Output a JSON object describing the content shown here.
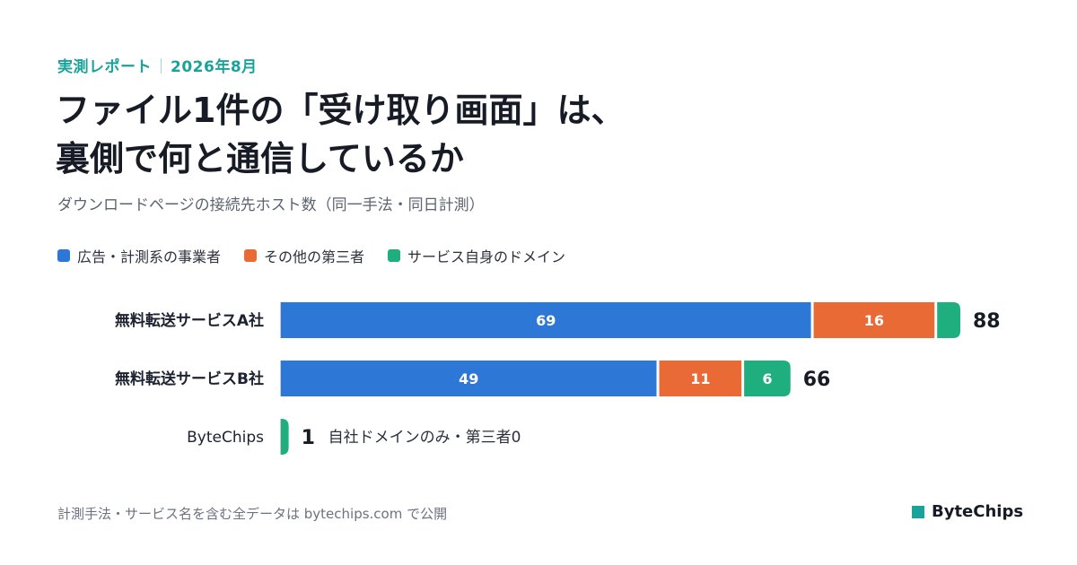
{
  "header": {
    "eyebrow_left": "実測レポート",
    "eyebrow_right": "2026年8月",
    "title_line1": "ファイル1件の「受け取り画面」は、",
    "title_line2": "裏側で何と通信しているか",
    "subtitle": "ダウンロードページの接続先ホスト数（同一手法・同日計測）"
  },
  "legend": [
    {
      "label": "広告・計測系の事業者",
      "color": "#2d78d6"
    },
    {
      "label": "その他の第三者",
      "color": "#ea6a35"
    },
    {
      "label": "サービス自身のドメイン",
      "color": "#1fae7e"
    }
  ],
  "chart_data": {
    "type": "bar",
    "orientation": "horizontal",
    "stacked": true,
    "categories": [
      "無料転送サービスA社",
      "無料転送サービスB社",
      "ByteChips"
    ],
    "series": [
      {
        "name": "広告・計測系の事業者",
        "color": "#2d78d6",
        "values": [
          69,
          49,
          0
        ]
      },
      {
        "name": "その他の第三者",
        "color": "#ea6a35",
        "values": [
          16,
          11,
          0
        ]
      },
      {
        "name": "サービス自身のドメイン",
        "color": "#1fae7e",
        "values": [
          3,
          6,
          1
        ]
      }
    ],
    "totals": [
      "88",
      "66",
      "1"
    ],
    "segment_labels": [
      [
        "69",
        "16",
        ""
      ],
      [
        "49",
        "11",
        "6"
      ],
      [
        "",
        "",
        ""
      ]
    ],
    "annotations": [
      "",
      "",
      "自社ドメインのみ・第三者0"
    ],
    "xlim": [
      0,
      88
    ],
    "grid": false
  },
  "footer": {
    "note": "計測手法・サービス名を含む全データは bytechips.com で公開",
    "brand": "ByteChips",
    "brand_color": "#1aa39a"
  }
}
